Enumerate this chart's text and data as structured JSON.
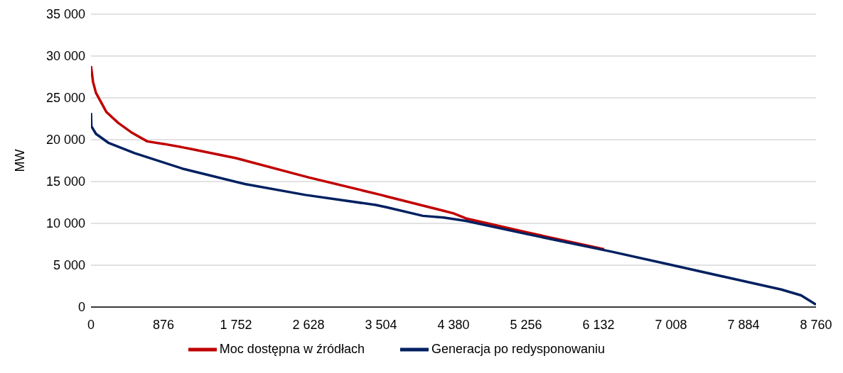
{
  "chart_data": {
    "type": "line",
    "ylabel": "MW",
    "xlim": [
      0,
      8760
    ],
    "xticks": [
      0,
      876,
      1752,
      2628,
      3504,
      4380,
      5256,
      6132,
      7008,
      7884,
      8760
    ],
    "ylim": [
      0,
      35000
    ],
    "yticks": [
      0,
      5000,
      10000,
      15000,
      20000,
      25000,
      30000,
      35000
    ],
    "grid": "y",
    "legend": "bottom",
    "marker": "none",
    "line_style": "solid",
    "series": [
      {
        "name": "Moc dostępna w źródłach",
        "color": "#c00000",
        "x": [
          0,
          25,
          60,
          187,
          330,
          500,
          680,
          876,
          1100,
          1205,
          1752,
          2628,
          3504,
          3580,
          4260,
          4380,
          4530,
          5280,
          6200
        ],
        "values": [
          28800,
          26900,
          25600,
          23300,
          22000,
          20800,
          19800,
          19500,
          19100,
          18900,
          17800,
          15500,
          13400,
          13200,
          11500,
          11200,
          10600,
          8900,
          6900
        ]
      },
      {
        "name": "Generacja po redysponowaniu",
        "color": "#002060",
        "x": [
          0,
          5,
          60,
          215,
          525,
          1120,
          1860,
          2590,
          3440,
          3580,
          4010,
          4260,
          4530,
          5280,
          6300,
          6980,
          7660,
          8340,
          8580,
          8760
        ],
        "values": [
          23200,
          21600,
          20700,
          19600,
          18400,
          16500,
          14700,
          13400,
          12200,
          11900,
          10900,
          10700,
          10300,
          8700,
          6600,
          5100,
          3600,
          2100,
          1400,
          300
        ]
      }
    ]
  }
}
